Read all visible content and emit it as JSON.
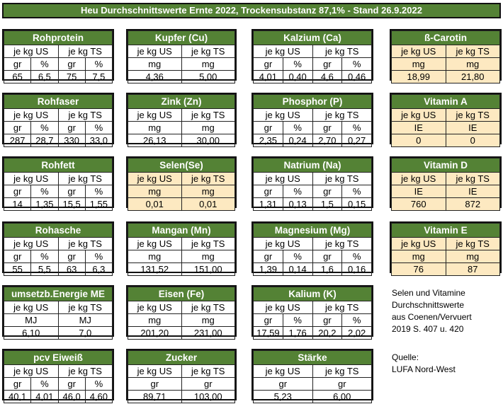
{
  "title": "Heu Durchschnittswerte Ernte 2022, Trockensubstanz 87,1% - Stand 26.9.2022",
  "colors": {
    "header_green": "#548235",
    "vitamin_cream": "#fde9c1"
  },
  "tables": [
    [
      {
        "name": "Rohprotein",
        "cream": false,
        "groups": [
          "je kg US",
          "je kg TS"
        ],
        "units": [
          "gr",
          "%",
          "gr",
          "%"
        ],
        "values": [
          "65",
          "6,5",
          "75",
          "7,5"
        ]
      },
      {
        "name": "Kupfer (Cu)",
        "cream": false,
        "groups": [
          "je kg US",
          "je kg TS"
        ],
        "units": [
          "mg",
          "mg"
        ],
        "values": [
          "4,36",
          "5,00"
        ]
      },
      {
        "name": "Kalzium (Ca)",
        "cream": false,
        "groups": [
          "je kg US",
          "je kg TS"
        ],
        "units": [
          "gr",
          "%",
          "gr",
          "%"
        ],
        "values": [
          "4,01",
          "0,40",
          "4,6",
          "0,46"
        ]
      },
      {
        "name": "ß-Carotin",
        "cream": true,
        "groups": [
          "je kg US",
          "je kg TS"
        ],
        "units": [
          "mg",
          "mg"
        ],
        "values": [
          "18,99",
          "21,80"
        ]
      }
    ],
    [
      {
        "name": "Rohfaser",
        "cream": false,
        "groups": [
          "je kg US",
          "je kg TS"
        ],
        "units": [
          "gr",
          "%",
          "gr",
          "%"
        ],
        "values": [
          "287",
          "28,7",
          "330",
          "33,0"
        ]
      },
      {
        "name": "Zink (Zn)",
        "cream": false,
        "groups": [
          "je kg US",
          "je kg TS"
        ],
        "units": [
          "mg",
          "mg"
        ],
        "values": [
          "26,13",
          "30,00"
        ]
      },
      {
        "name": "Phosphor (P)",
        "cream": false,
        "groups": [
          "je kg US",
          "je kg TS"
        ],
        "units": [
          "gr",
          "%",
          "gr",
          "%"
        ],
        "values": [
          "2,35",
          "0,24",
          "2,70",
          "0,27"
        ]
      },
      {
        "name": "Vitamin A",
        "cream": true,
        "groups": [
          "je kg US",
          "je kg TS"
        ],
        "units": [
          "IE",
          "IE"
        ],
        "values": [
          "0",
          "0"
        ]
      }
    ],
    [
      {
        "name": "Rohfett",
        "cream": false,
        "groups": [
          "je kg US",
          "je kg TS"
        ],
        "units": [
          "gr",
          "%",
          "gr",
          "%"
        ],
        "values": [
          "14",
          "1,35",
          "15,5",
          "1,55"
        ]
      },
      {
        "name": "Selen(Se)",
        "cream": true,
        "groups": [
          "je kg US",
          "je kg TS"
        ],
        "units": [
          "mg",
          "mg"
        ],
        "values": [
          "0,01",
          "0,01"
        ]
      },
      {
        "name": "Natrium (Na)",
        "cream": false,
        "groups": [
          "je kg US",
          "je kg TS"
        ],
        "units": [
          "gr",
          "%",
          "gr",
          "%"
        ],
        "values": [
          "1,31",
          "0,13",
          "1,5",
          "0,15"
        ]
      },
      {
        "name": "Vitamin D",
        "cream": true,
        "groups": [
          "je kg US",
          "je kg TS"
        ],
        "units": [
          "IE",
          "IE"
        ],
        "values": [
          "760",
          "872"
        ]
      }
    ],
    [
      {
        "name": "Rohasche",
        "cream": false,
        "groups": [
          "je kg US",
          "je kg TS"
        ],
        "units": [
          "gr",
          "%",
          "gr",
          "%"
        ],
        "values": [
          "55",
          "5,5",
          "63",
          "6,3"
        ]
      },
      {
        "name": "Mangan (Mn)",
        "cream": false,
        "groups": [
          "je kg US",
          "je kg TS"
        ],
        "units": [
          "mg",
          "mg"
        ],
        "values": [
          "131,52",
          "151,00"
        ]
      },
      {
        "name": "Magnesium (Mg)",
        "cream": false,
        "groups": [
          "je kg US",
          "je kg TS"
        ],
        "units": [
          "gr",
          "%",
          "gr",
          "%"
        ],
        "values": [
          "1,39",
          "0,14",
          "1,6",
          "0,16"
        ]
      },
      {
        "name": "Vitamin E",
        "cream": true,
        "groups": [
          "je kg US",
          "je kg TS"
        ],
        "units": [
          "mg",
          "mg"
        ],
        "values": [
          "76",
          "87"
        ]
      }
    ],
    [
      {
        "name": "umsetzb.Energie ME",
        "cream": false,
        "groups": [
          "je kg US",
          "je kg TS"
        ],
        "units": [
          "MJ",
          "MJ"
        ],
        "values": [
          "6,10",
          "7,0"
        ]
      },
      {
        "name": "Eisen (Fe)",
        "cream": false,
        "groups": [
          "je kg US",
          "je kg TS"
        ],
        "units": [
          "mg",
          "mg"
        ],
        "values": [
          "201,20",
          "231,00"
        ]
      },
      {
        "name": "Kalium (K)",
        "cream": false,
        "groups": [
          "je kg US",
          "je kg TS"
        ],
        "units": [
          "gr",
          "%",
          "gr",
          "%"
        ],
        "values": [
          "17,59",
          "1,76",
          "20,2",
          "2,02"
        ]
      }
    ],
    [
      {
        "name": "pcv Eiweiß",
        "cream": false,
        "groups": [
          "je kg US",
          "je kg TS"
        ],
        "units": [
          "gr",
          "%",
          "gr",
          "%"
        ],
        "values": [
          "40,1",
          "4,01",
          "46,0",
          "4,60"
        ]
      },
      {
        "name": "Zucker",
        "cream": false,
        "groups": [
          "je kg US",
          "je kg TS"
        ],
        "units": [
          "gr",
          "gr"
        ],
        "values": [
          "89,71",
          "103,00"
        ]
      },
      {
        "name": "Stärke",
        "cream": false,
        "groups": [
          "je kg US",
          "je kg TS"
        ],
        "units": [
          "gr",
          "gr"
        ],
        "values": [
          "5,23",
          "6,00"
        ]
      }
    ]
  ],
  "notes": {
    "source_note": [
      "Selen und Vitamine",
      "Durchschnittswerte",
      "aus Coenen/Vervuert",
      "2019 S. 407 u. 420"
    ],
    "quelle": [
      "Quelle:",
      "LUFA Nord-West"
    ]
  }
}
